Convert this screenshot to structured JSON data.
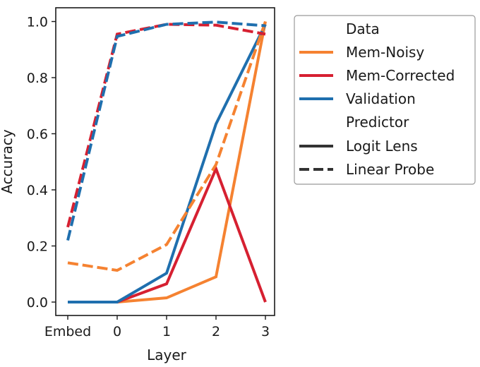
{
  "chart_data": {
    "type": "line",
    "title": "",
    "xlabel": "Layer",
    "ylabel": "Accuracy",
    "categories": [
      "Embed",
      "0",
      "1",
      "2",
      "3"
    ],
    "yticks": [
      "0.0",
      "0.2",
      "0.4",
      "0.6",
      "0.8",
      "1.0"
    ],
    "ytick_values": [
      0.0,
      0.2,
      0.4,
      0.6,
      0.8,
      1.0
    ],
    "ylim": [
      -0.05,
      1.05
    ],
    "grid": false,
    "legend_position": "outside-right-top",
    "legend": {
      "data_title": "Data",
      "predictor_title": "Predictor",
      "data_entries": [
        {
          "name": "Mem-Noisy",
          "color": "#f58231"
        },
        {
          "name": "Mem-Corrected",
          "color": "#d62031"
        },
        {
          "name": "Validation",
          "color": "#1f6fae"
        }
      ],
      "predictor_entries": [
        {
          "name": "Logit Lens",
          "style": "solid",
          "color": "#333333"
        },
        {
          "name": "Linear Probe",
          "style": "dashed",
          "color": "#333333"
        }
      ]
    },
    "series": [
      {
        "name": "Mem-Noisy",
        "predictor": "Logit Lens",
        "color": "#f58231",
        "style": "solid",
        "values": [
          0.0,
          0.0,
          0.015,
          0.09,
          1.0
        ]
      },
      {
        "name": "Mem-Corrected",
        "predictor": "Logit Lens",
        "color": "#d62031",
        "style": "solid",
        "values": [
          0.0,
          0.0,
          0.065,
          0.475,
          0.0
        ]
      },
      {
        "name": "Validation",
        "predictor": "Logit Lens",
        "color": "#1f6fae",
        "style": "solid",
        "values": [
          0.0,
          0.0,
          0.103,
          0.635,
          0.99
        ]
      },
      {
        "name": "Mem-Noisy",
        "predictor": "Linear Probe",
        "color": "#f58231",
        "style": "dashed",
        "values": [
          0.14,
          0.113,
          0.205,
          0.49,
          1.0
        ]
      },
      {
        "name": "Mem-Corrected",
        "predictor": "Linear Probe",
        "color": "#d62031",
        "style": "dashed",
        "values": [
          0.267,
          0.955,
          0.99,
          0.987,
          0.955
        ]
      },
      {
        "name": "Validation",
        "predictor": "Linear Probe",
        "color": "#1f6fae",
        "style": "dashed",
        "values": [
          0.22,
          0.947,
          0.99,
          0.998,
          0.985
        ]
      }
    ]
  }
}
